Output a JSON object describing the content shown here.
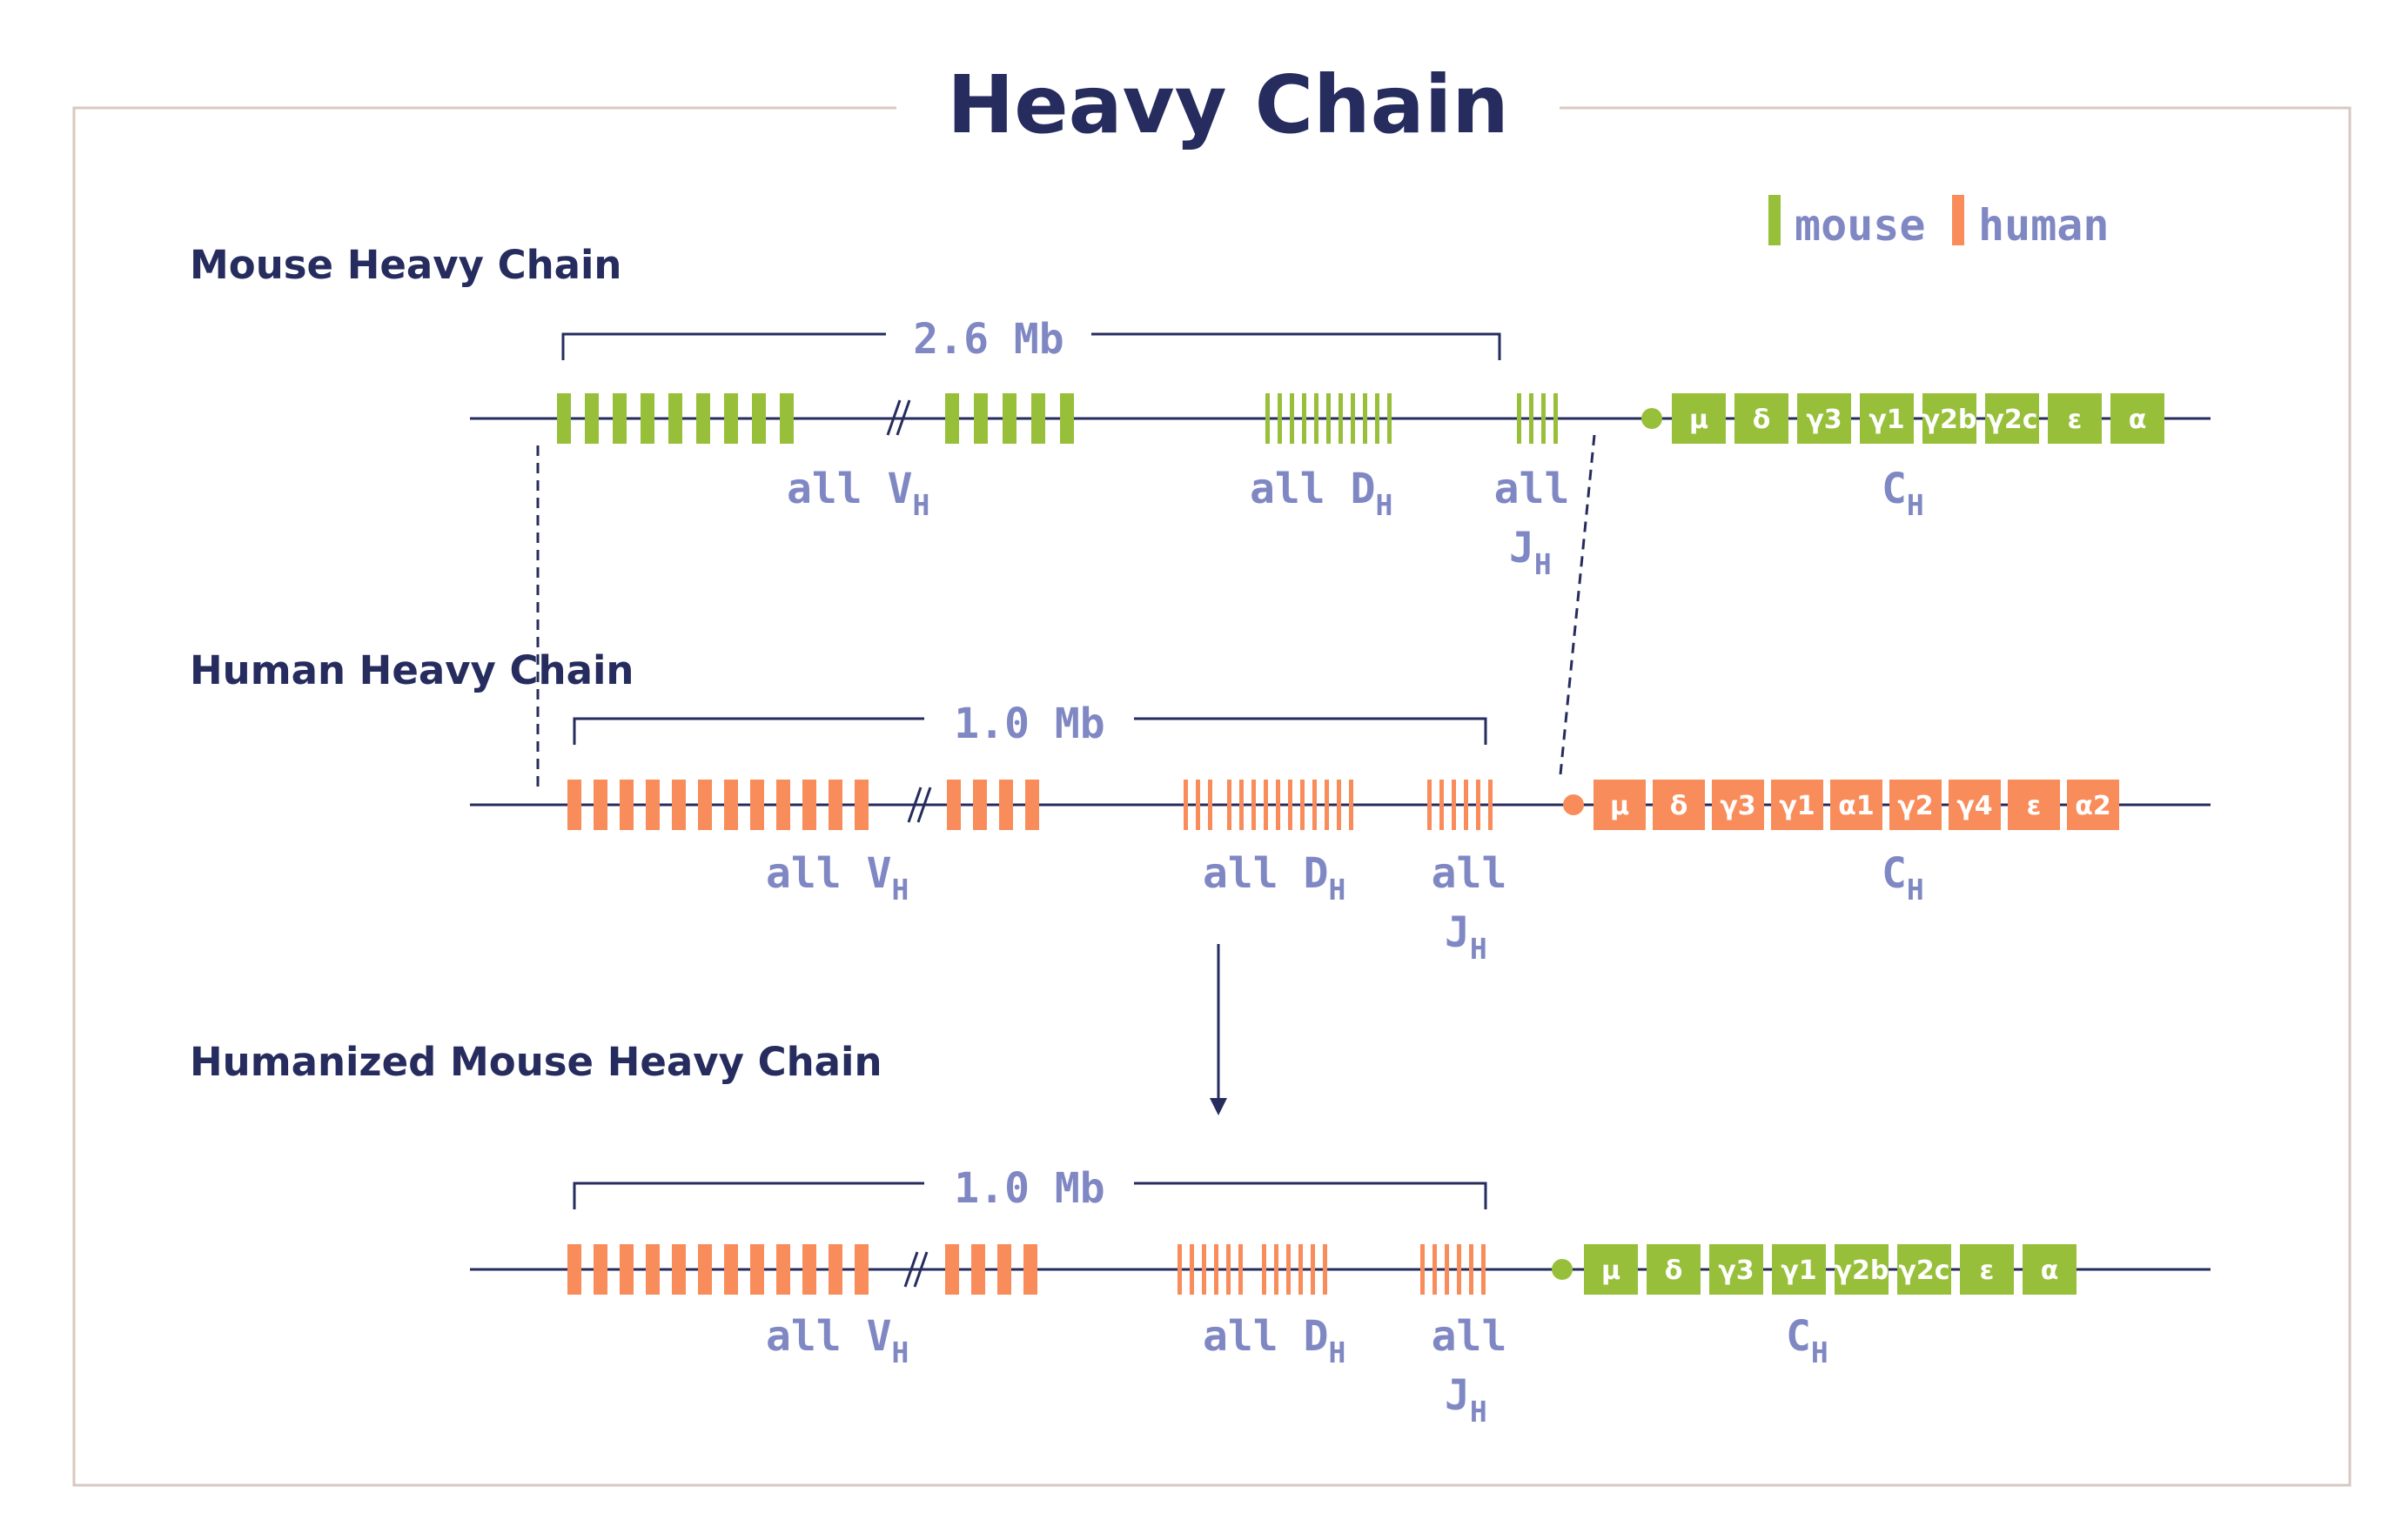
{
  "title": "Heavy Chain",
  "legend": [
    {
      "label": "mouse",
      "color": "#97bf3a"
    },
    {
      "label": "human",
      "color": "#f98c5b"
    }
  ],
  "colors": {
    "line": "#262c5e",
    "label": "#8088c4",
    "frame": "#d8c8c0"
  },
  "sections": [
    {
      "title": "Mouse Heavy Chain",
      "size": "2.6 Mb",
      "v_label": "all V",
      "d_label": "all D",
      "j_label_1": "all",
      "j_label_2": "J",
      "c_label": "C",
      "subscript": "H",
      "segment_species": "mouse",
      "constant_species": "mouse",
      "constant": [
        "μ",
        "δ",
        "γ3",
        "γ1",
        "γ2b",
        "γ2c",
        "ε",
        "α"
      ]
    },
    {
      "title": "Human Heavy Chain",
      "size": "1.0 Mb",
      "v_label": "all V",
      "d_label": "all D",
      "j_label_1": "all",
      "j_label_2": "J",
      "c_label": "C",
      "subscript": "H",
      "segment_species": "human",
      "constant_species": "human",
      "constant": [
        "μ",
        "δ",
        "γ3",
        "γ1",
        "α1",
        "γ2",
        "γ4",
        "ε",
        "α2"
      ]
    },
    {
      "title": "Humanized Mouse Heavy Chain",
      "size": "1.0 Mb",
      "v_label": "all V",
      "d_label": "all D",
      "j_label_1": "all",
      "j_label_2": "J",
      "c_label": "C",
      "subscript": "H",
      "segment_species": "human",
      "constant_species": "mouse",
      "constant": [
        "μ",
        "δ",
        "γ3",
        "γ1",
        "γ2b",
        "γ2c",
        "ε",
        "α"
      ]
    }
  ]
}
